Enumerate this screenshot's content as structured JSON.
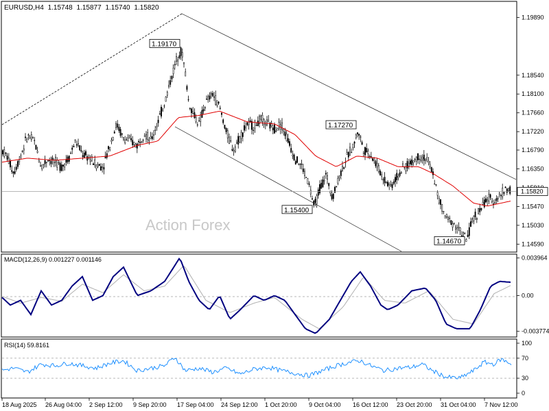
{
  "chart_data": {
    "type": "candlestick",
    "symbol": "EURUSD,H4",
    "ohlc_header": [
      "1.15748",
      "1.15877",
      "1.15740",
      "1.15820"
    ],
    "watermark": "Action Forex",
    "price_axis": {
      "ticks": [
        "1.19890",
        "1.18540",
        "1.18100",
        "1.17660",
        "1.17220",
        "1.16790",
        "1.16350",
        "1.15910",
        "1.15470",
        "1.15030",
        "1.14590"
      ],
      "min": 1.1442,
      "max": 1.2025,
      "current": "1.15820"
    },
    "x_labels": [
      "18 Aug 2025",
      "26 Aug 04:00",
      "2 Sep 12:00",
      "9 Sep 20:00",
      "17 Sep 04:00",
      "24 Sep 12:00",
      "1 Oct 20:00",
      "9 Oct 04:00",
      "16 Oct 12:00",
      "23 Oct 20:00",
      "31 Oct 04:00",
      "7 Nov 12:00"
    ],
    "price_keypoints": [
      [
        0,
        1.1685
      ],
      [
        10,
        1.1665
      ],
      [
        20,
        1.1625
      ],
      [
        30,
        1.1665
      ],
      [
        40,
        1.1712
      ],
      [
        50,
        1.17
      ],
      [
        60,
        1.164
      ],
      [
        70,
        1.1658
      ],
      [
        80,
        1.165
      ],
      [
        90,
        1.164
      ],
      [
        100,
        1.166
      ],
      [
        110,
        1.17
      ],
      [
        120,
        1.167
      ],
      [
        130,
        1.166
      ],
      [
        140,
        1.1645
      ],
      [
        150,
        1.164
      ],
      [
        160,
        1.169
      ],
      [
        170,
        1.174
      ],
      [
        180,
        1.1705
      ],
      [
        190,
        1.17
      ],
      [
        200,
        1.169
      ],
      [
        210,
        1.172
      ],
      [
        220,
        1.17
      ],
      [
        230,
        1.1745
      ],
      [
        240,
        1.179
      ],
      [
        250,
        1.185
      ],
      [
        260,
        1.1905
      ],
      [
        265,
        1.191
      ],
      [
        270,
        1.186
      ],
      [
        275,
        1.179
      ],
      [
        280,
        1.177
      ],
      [
        290,
        1.174
      ],
      [
        300,
        1.179
      ],
      [
        310,
        1.181
      ],
      [
        320,
        1.178
      ],
      [
        330,
        1.172
      ],
      [
        340,
        1.168
      ],
      [
        350,
        1.171
      ],
      [
        360,
        1.174
      ],
      [
        370,
        1.1735
      ],
      [
        380,
        1.175
      ],
      [
        390,
        1.174
      ],
      [
        400,
        1.173
      ],
      [
        410,
        1.174
      ],
      [
        420,
        1.17
      ],
      [
        430,
        1.166
      ],
      [
        440,
        1.164
      ],
      [
        450,
        1.16
      ],
      [
        458,
        1.1545
      ],
      [
        465,
        1.1585
      ],
      [
        475,
        1.162
      ],
      [
        485,
        1.157
      ],
      [
        495,
        1.162
      ],
      [
        505,
        1.166
      ],
      [
        515,
        1.169
      ],
      [
        522,
        1.1725
      ],
      [
        530,
        1.168
      ],
      [
        540,
        1.167
      ],
      [
        550,
        1.164
      ],
      [
        560,
        1.161
      ],
      [
        570,
        1.1595
      ],
      [
        580,
        1.162
      ],
      [
        590,
        1.164
      ],
      [
        600,
        1.165
      ],
      [
        610,
        1.1665
      ],
      [
        620,
        1.166
      ],
      [
        630,
        1.163
      ],
      [
        640,
        1.156
      ],
      [
        650,
        1.152
      ],
      [
        660,
        1.151
      ],
      [
        670,
        1.149
      ],
      [
        680,
        1.147
      ],
      [
        690,
        1.152
      ],
      [
        700,
        1.154
      ],
      [
        710,
        1.1565
      ],
      [
        720,
        1.156
      ],
      [
        730,
        1.1575
      ],
      [
        738,
        1.159
      ],
      [
        745,
        1.1582
      ]
    ],
    "ma_keypoints": [
      [
        0,
        1.165
      ],
      [
        40,
        1.166
      ],
      [
        80,
        1.1655
      ],
      [
        120,
        1.166
      ],
      [
        160,
        1.1665
      ],
      [
        200,
        1.169
      ],
      [
        230,
        1.17
      ],
      [
        260,
        1.1755
      ],
      [
        290,
        1.176
      ],
      [
        320,
        1.177
      ],
      [
        360,
        1.1745
      ],
      [
        400,
        1.174
      ],
      [
        430,
        1.1715
      ],
      [
        460,
        1.1665
      ],
      [
        490,
        1.164
      ],
      [
        520,
        1.1665
      ],
      [
        550,
        1.166
      ],
      [
        580,
        1.164
      ],
      [
        610,
        1.164
      ],
      [
        630,
        1.1625
      ],
      [
        660,
        1.1595
      ],
      [
        690,
        1.1555
      ],
      [
        710,
        1.1548
      ],
      [
        745,
        1.156
      ]
    ],
    "annotations": [
      {
        "label": "1.19170",
        "x": 265,
        "price": 1.1917
      },
      {
        "label": "1.17270",
        "x": 522,
        "price": 1.1727
      },
      {
        "label": "1.15400",
        "x": 458,
        "price": 1.154
      },
      {
        "label": "1.14670",
        "x": 680,
        "price": 1.1467
      }
    ],
    "macd": {
      "label": "MACD(12,26,9) 0.001227 0.001146",
      "ticks": [
        "0.003964",
        "0.00",
        "-0.003774"
      ],
      "min": -0.0043,
      "max": 0.0043,
      "keypoints": [
        [
          0,
          0.0
        ],
        [
          15,
          -0.001
        ],
        [
          30,
          -0.0005
        ],
        [
          45,
          -0.002
        ],
        [
          60,
          0.0005
        ],
        [
          75,
          -0.001
        ],
        [
          90,
          -0.0005
        ],
        [
          105,
          0.001
        ],
        [
          120,
          0.002
        ],
        [
          135,
          -0.0005
        ],
        [
          150,
          0.0
        ],
        [
          165,
          0.002
        ],
        [
          180,
          0.003
        ],
        [
          200,
          0.0
        ],
        [
          220,
          0.0005
        ],
        [
          240,
          0.0015
        ],
        [
          262,
          0.004
        ],
        [
          275,
          0.0015
        ],
        [
          290,
          -0.0005
        ],
        [
          305,
          -0.0015
        ],
        [
          320,
          0.0
        ],
        [
          335,
          -0.0025
        ],
        [
          350,
          -0.0015
        ],
        [
          370,
          0.0
        ],
        [
          385,
          -0.0005
        ],
        [
          400,
          0.0
        ],
        [
          415,
          -0.0005
        ],
        [
          430,
          -0.002
        ],
        [
          445,
          -0.0035
        ],
        [
          460,
          -0.004
        ],
        [
          480,
          -0.0025
        ],
        [
          500,
          0.0
        ],
        [
          512,
          0.0015
        ],
        [
          525,
          0.0025
        ],
        [
          540,
          0.001
        ],
        [
          555,
          -0.001
        ],
        [
          565,
          -0.0015
        ],
        [
          580,
          -0.001
        ],
        [
          600,
          0.0005
        ],
        [
          620,
          0.0008
        ],
        [
          635,
          -0.0005
        ],
        [
          650,
          -0.003
        ],
        [
          665,
          -0.0035
        ],
        [
          685,
          -0.0035
        ],
        [
          700,
          -0.0015
        ],
        [
          715,
          0.001
        ],
        [
          728,
          0.0015
        ],
        [
          745,
          0.0014
        ]
      ],
      "signal_keypoints": [
        [
          0,
          0.0
        ],
        [
          30,
          -0.0008
        ],
        [
          60,
          -0.0002
        ],
        [
          90,
          -0.0006
        ],
        [
          120,
          0.0012
        ],
        [
          150,
          0.0003
        ],
        [
          180,
          0.0022
        ],
        [
          210,
          0.0005
        ],
        [
          240,
          0.001
        ],
        [
          268,
          0.0032
        ],
        [
          300,
          -0.0005
        ],
        [
          335,
          -0.0018
        ],
        [
          370,
          -0.0008
        ],
        [
          400,
          -0.0002
        ],
        [
          440,
          -0.0025
        ],
        [
          465,
          -0.0035
        ],
        [
          500,
          -0.0012
        ],
        [
          530,
          0.002
        ],
        [
          560,
          -0.0005
        ],
        [
          590,
          -0.0008
        ],
        [
          625,
          0.0005
        ],
        [
          660,
          -0.0025
        ],
        [
          690,
          -0.003
        ],
        [
          720,
          0.0002
        ],
        [
          745,
          0.0011
        ]
      ]
    },
    "rsi": {
      "label": "RSI(14) 59.8161",
      "ticks": [
        "100",
        "70",
        "30",
        "0"
      ],
      "keypoints": [
        [
          0,
          45
        ],
        [
          20,
          50
        ],
        [
          40,
          42
        ],
        [
          60,
          58
        ],
        [
          80,
          55
        ],
        [
          100,
          60
        ],
        [
          120,
          55
        ],
        [
          140,
          50
        ],
        [
          160,
          60
        ],
        [
          180,
          65
        ],
        [
          200,
          45
        ],
        [
          220,
          50
        ],
        [
          240,
          55
        ],
        [
          255,
          72
        ],
        [
          270,
          45
        ],
        [
          290,
          50
        ],
        [
          310,
          42
        ],
        [
          330,
          50
        ],
        [
          350,
          38
        ],
        [
          370,
          48
        ],
        [
          390,
          52
        ],
        [
          410,
          45
        ],
        [
          430,
          40
        ],
        [
          450,
          35
        ],
        [
          470,
          45
        ],
        [
          490,
          55
        ],
        [
          510,
          62
        ],
        [
          525,
          65
        ],
        [
          540,
          55
        ],
        [
          560,
          45
        ],
        [
          580,
          50
        ],
        [
          600,
          52
        ],
        [
          615,
          58
        ],
        [
          630,
          45
        ],
        [
          650,
          32
        ],
        [
          670,
          30
        ],
        [
          690,
          45
        ],
        [
          705,
          62
        ],
        [
          720,
          58
        ],
        [
          730,
          68
        ],
        [
          745,
          59
        ]
      ]
    }
  }
}
